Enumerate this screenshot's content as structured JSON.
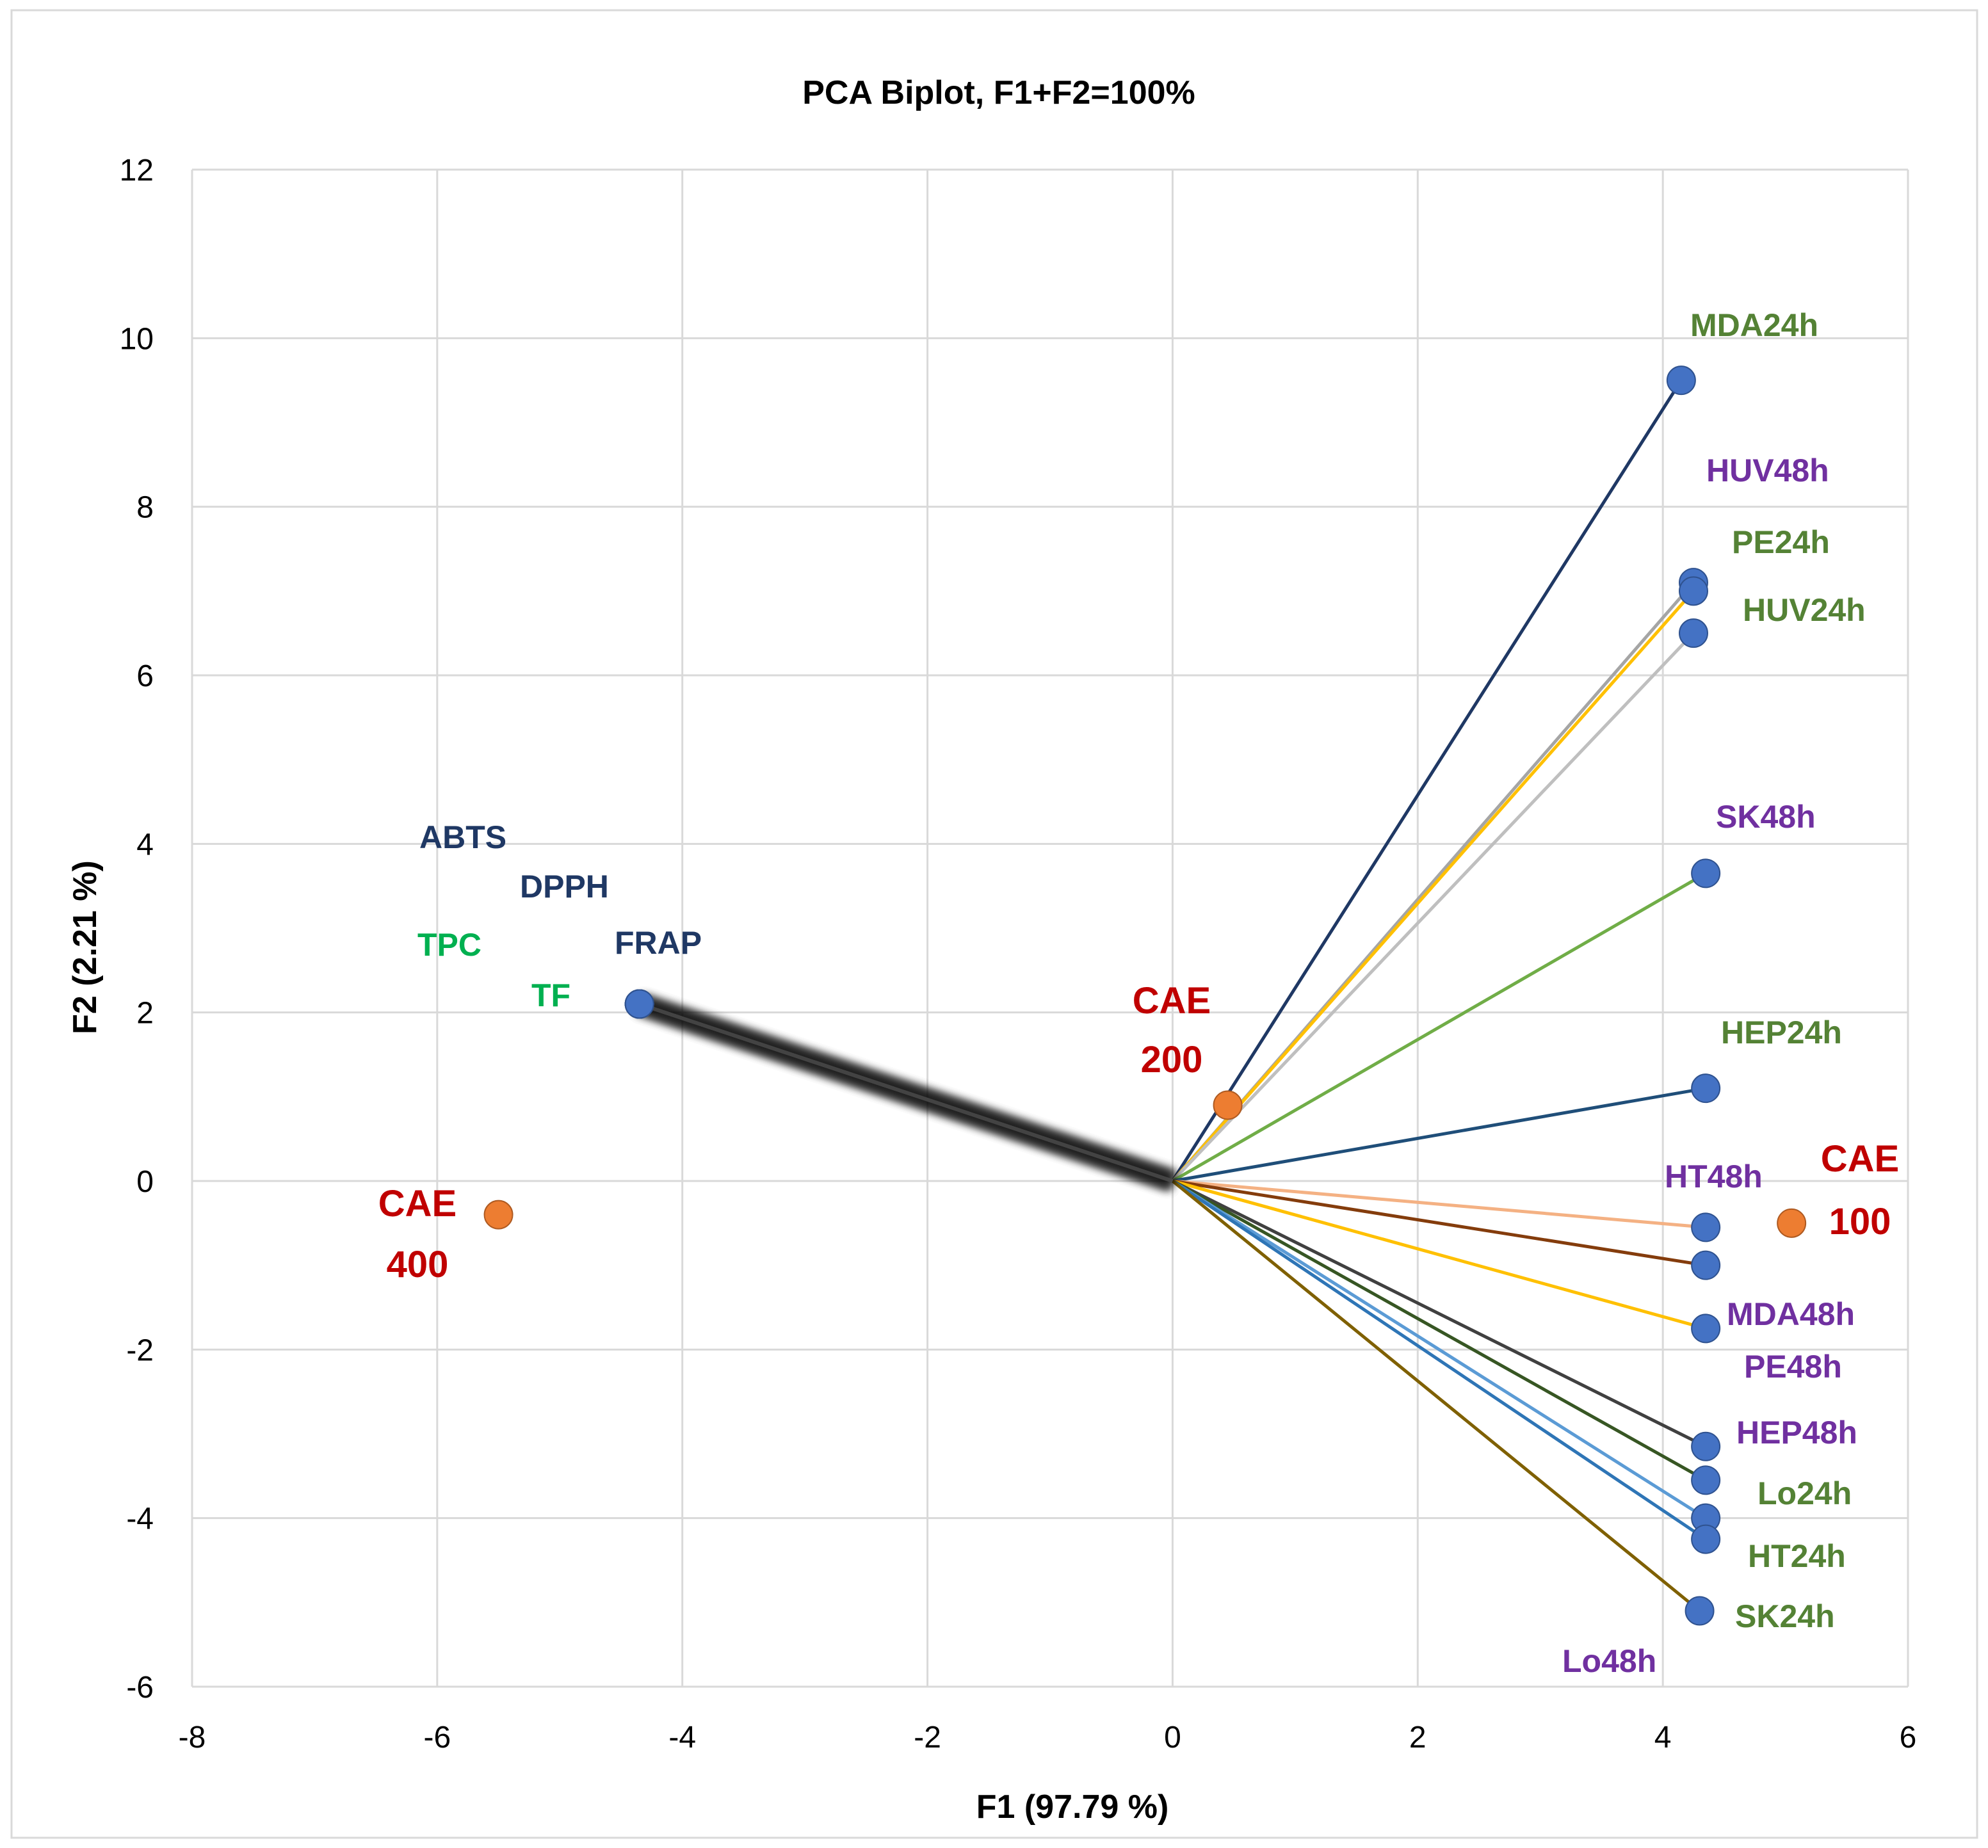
{
  "chart_data": {
    "type": "scatter",
    "title": "PCA Biplot, F1+F2=100%",
    "xlabel": "F1 (97.79 %)",
    "ylabel": "F2 (2.21 %)",
    "xlim": [
      -8,
      6
    ],
    "ylim": [
      -6,
      12
    ],
    "xticks": [
      -8,
      -6,
      -4,
      -2,
      0,
      2,
      4,
      6
    ],
    "yticks": [
      -6,
      -4,
      -2,
      0,
      2,
      4,
      6,
      8,
      10,
      12
    ],
    "grid": true,
    "point_colors": {
      "variable": "#4472c4",
      "observation": "#ed7d31"
    },
    "variables": [
      {
        "name": "MDA24h",
        "x": 4.15,
        "y": 9.5,
        "line_color": "#1f3864",
        "label_color": "#548235"
      },
      {
        "name": "HUV48h",
        "x": 4.25,
        "y": 7.1,
        "line_color": "#a5a5a5",
        "label_color": "#7030a0"
      },
      {
        "name": "PE24h",
        "x": 4.25,
        "y": 7.0,
        "line_color": "#ffc000",
        "label_color": "#548235"
      },
      {
        "name": "HUV24h",
        "x": 4.25,
        "y": 6.5,
        "line_color": "#bfbfbf",
        "label_color": "#548235"
      },
      {
        "name": "SK48h",
        "x": 4.35,
        "y": 3.65,
        "line_color": "#70ad47",
        "label_color": "#7030a0"
      },
      {
        "name": "HEP24h",
        "x": 4.35,
        "y": 1.1,
        "line_color": "#1f4e79",
        "label_color": "#548235"
      },
      {
        "name": "HT48h",
        "x": 4.35,
        "y": -0.55,
        "line_color": "#f4b183",
        "label_color": "#7030a0"
      },
      {
        "name": "MDA48h",
        "x": 4.35,
        "y": -1.0,
        "line_color": "#843c0c",
        "label_color": "#7030a0"
      },
      {
        "name": "PE48h",
        "x": 4.35,
        "y": -1.75,
        "line_color": "#ffc000",
        "label_color": "#7030a0"
      },
      {
        "name": "HEP48h",
        "x": 4.35,
        "y": -3.15,
        "line_color": "#404040",
        "label_color": "#7030a0"
      },
      {
        "name": "Lo24h",
        "x": 4.35,
        "y": -3.55,
        "line_color": "#375623",
        "label_color": "#548235"
      },
      {
        "name": "HT24h",
        "x": 4.35,
        "y": -4.0,
        "line_color": "#5b9bd5",
        "label_color": "#548235"
      },
      {
        "name": "SK24h",
        "x": 4.35,
        "y": -4.25,
        "line_color": "#2e75b6",
        "label_color": "#548235"
      },
      {
        "name": "Lo48h",
        "x": 4.3,
        "y": -5.1,
        "line_color": "#7f6000",
        "label_color": "#7030a0"
      },
      {
        "name": "ABTS",
        "x": -4.35,
        "y": 2.1,
        "line_color": "#595959",
        "label_color": "#1f3864"
      },
      {
        "name": "DPPH",
        "x": -4.35,
        "y": 2.1,
        "line_color": "#595959",
        "label_color": "#1f3864"
      },
      {
        "name": "TPC",
        "x": -4.35,
        "y": 2.1,
        "line_color": "#595959",
        "label_color": "#00b050"
      },
      {
        "name": "TF",
        "x": -4.35,
        "y": 2.1,
        "line_color": "#595959",
        "label_color": "#00b050"
      },
      {
        "name": "FRAP",
        "x": -4.35,
        "y": 2.1,
        "line_color": "#595959",
        "label_color": "#1f3864"
      }
    ],
    "observations": [
      {
        "name": "CAE 200",
        "line1": "CAE",
        "line2": "200",
        "x": 0.45,
        "y": 0.9
      },
      {
        "name": "CAE 400",
        "line1": "CAE",
        "line2": "400",
        "x": -5.5,
        "y": -0.4
      },
      {
        "name": "CAE 100",
        "line1": "CAE",
        "line2": "100",
        "x": 5.05,
        "y": -0.5
      }
    ]
  }
}
